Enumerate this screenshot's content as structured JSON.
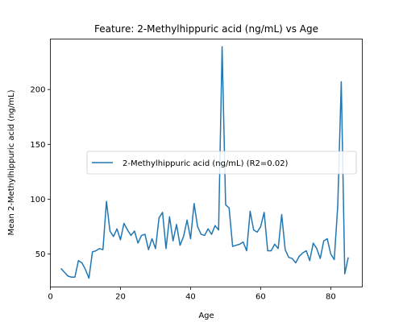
{
  "chart_data": {
    "type": "line",
    "title": "Feature: 2-Methylhippuric acid (ng/mL) vs Age",
    "xlabel": "Age",
    "ylabel": "Mean 2-Methylhippuric acid (ng/mL)",
    "xlim": [
      0,
      89
    ],
    "ylim": [
      20,
      246
    ],
    "xticks": [
      0,
      20,
      40,
      60,
      80
    ],
    "yticks": [
      50,
      100,
      150,
      200
    ],
    "grid": false,
    "legend_position": "center-right",
    "series": [
      {
        "name": "2-Methylhippuric acid (ng/mL) (R2=0.02)",
        "color": "#1f77b4",
        "x": [
          3,
          5,
          6,
          7,
          8,
          9,
          10,
          11,
          12,
          13,
          14,
          15,
          16,
          17,
          18,
          19,
          20,
          21,
          22,
          23,
          24,
          25,
          26,
          27,
          28,
          29,
          30,
          31,
          32,
          33,
          34,
          35,
          36,
          37,
          38,
          39,
          40,
          41,
          42,
          43,
          44,
          45,
          46,
          47,
          48,
          49,
          50,
          51,
          52,
          53,
          54,
          55,
          56,
          57,
          58,
          59,
          60,
          61,
          62,
          63,
          64,
          65,
          66,
          67,
          68,
          69,
          70,
          71,
          72,
          73,
          74,
          75,
          76,
          77,
          78,
          79,
          80,
          81,
          82,
          83,
          84,
          85
        ],
        "y": [
          37,
          30,
          29,
          29,
          44,
          42,
          36,
          28,
          52,
          53,
          55,
          54,
          98,
          71,
          66,
          73,
          63,
          78,
          72,
          67,
          71,
          60,
          67,
          68,
          54,
          64,
          55,
          83,
          88,
          55,
          84,
          62,
          77,
          58,
          66,
          81,
          64,
          96,
          75,
          68,
          67,
          73,
          68,
          76,
          72,
          239,
          95,
          92,
          57,
          58,
          59,
          61,
          53,
          89,
          72,
          70,
          75,
          88,
          53,
          53,
          59,
          55,
          86,
          54,
          47,
          46,
          42,
          48,
          51,
          53,
          44,
          60,
          55,
          46,
          62,
          64,
          50,
          45,
          94,
          207,
          32,
          47
        ]
      }
    ]
  }
}
